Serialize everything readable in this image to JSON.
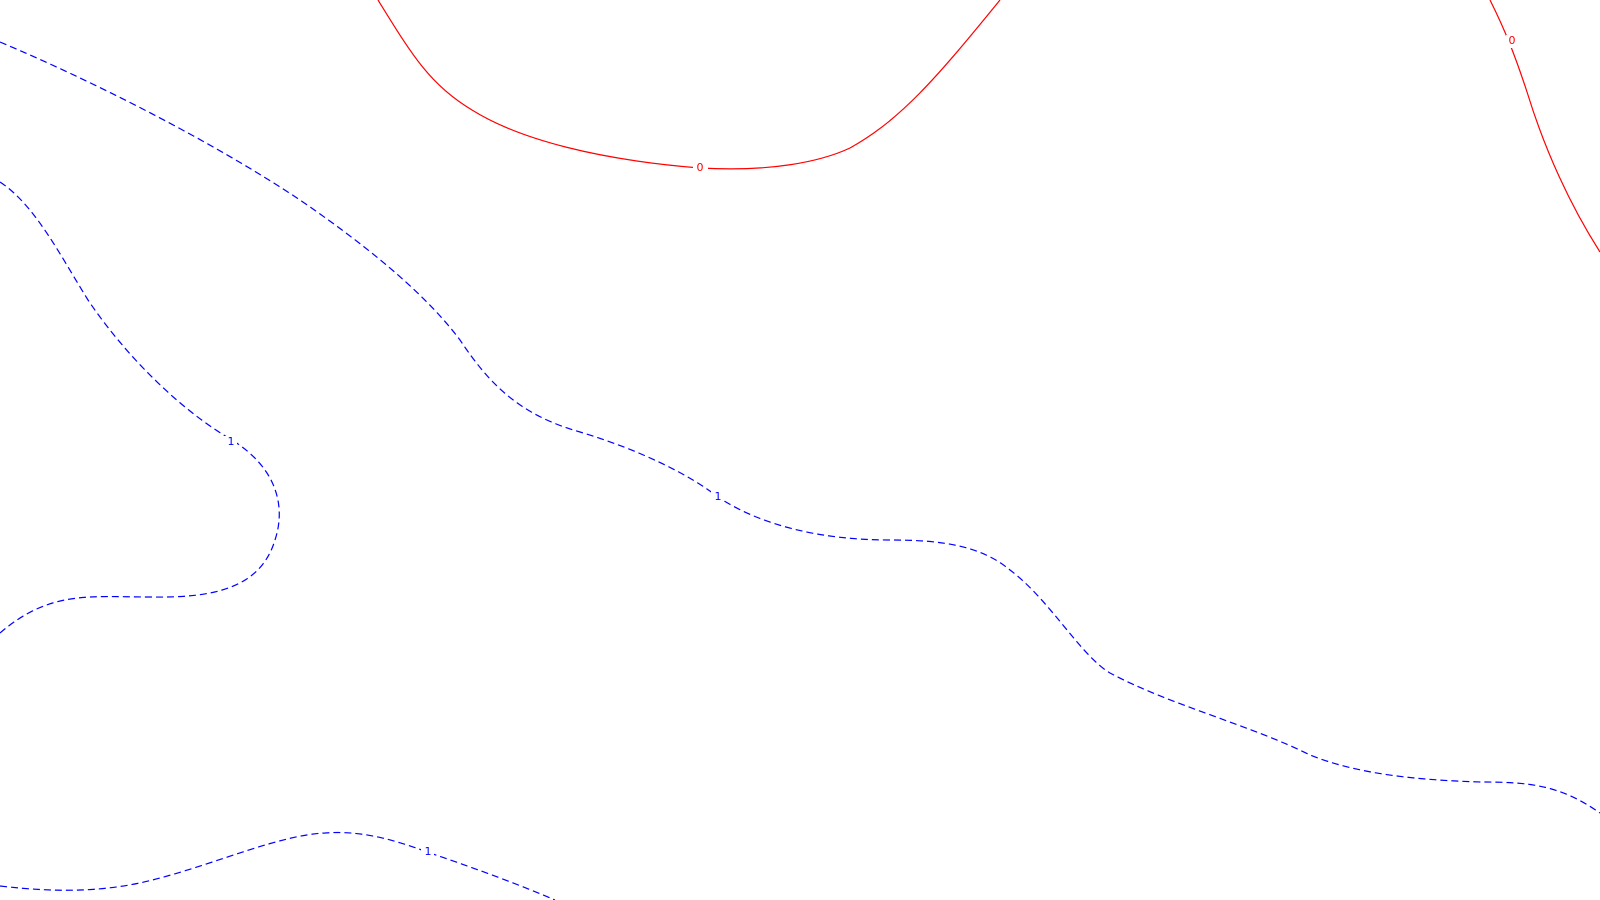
{
  "map": {
    "background_color": "#ffffff",
    "contours": [
      {
        "id": "contour-zero-valley",
        "level": "0",
        "style": "solid",
        "color": "#ff0000",
        "label": "0"
      },
      {
        "id": "contour-zero-right",
        "level": "0",
        "style": "solid",
        "color": "#ff0000",
        "label": "0"
      },
      {
        "id": "contour-one-left-loop",
        "level": "1",
        "style": "dashed",
        "color": "#0000ff",
        "label": "1"
      },
      {
        "id": "contour-one-diagonal",
        "level": "1",
        "style": "dashed",
        "color": "#0000ff",
        "label": "1"
      },
      {
        "id": "contour-one-bottom",
        "level": "1",
        "style": "dashed",
        "color": "#0000ff",
        "label": "1"
      }
    ]
  }
}
